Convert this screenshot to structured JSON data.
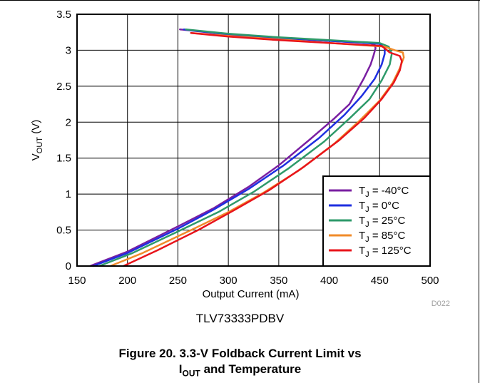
{
  "chart_data": {
    "type": "line",
    "subtitle": "TLV73333PDBV",
    "caption_line1": "Figure 20. 3.3-V Foldback Current Limit vs",
    "caption_line2_main": "I",
    "caption_line2_sub": "OUT",
    "caption_line2_rest": " and Temperature",
    "xlabel": "Output Current (mA)",
    "ylabel_main": "V",
    "ylabel_sub": "OUT",
    "ylabel_rest": " (V)",
    "xlim": [
      150,
      500
    ],
    "ylim": [
      0,
      3.5
    ],
    "xticks": [
      "150",
      "200",
      "250",
      "300",
      "350",
      "400",
      "450",
      "500"
    ],
    "yticks": [
      "0",
      "0.5",
      "1",
      "1.5",
      "2",
      "2.5",
      "3",
      "3.5"
    ],
    "grid": true,
    "legend_position": "bottom-right",
    "figure_code": "D022",
    "series": [
      {
        "name": "Tⱼ = -40°C",
        "legend_main": "T",
        "legend_sub": "J",
        "legend_rest": " = -40°C",
        "color": "#7a1fa2",
        "x": [
          163,
          200,
          250,
          285,
          320,
          350,
          380,
          405,
          420,
          428,
          434,
          441,
          444,
          446,
          445,
          440,
          400,
          350,
          300,
          252
        ],
        "y": [
          0,
          0.2,
          0.55,
          0.8,
          1.1,
          1.4,
          1.75,
          2.05,
          2.25,
          2.45,
          2.6,
          2.8,
          2.93,
          3.03,
          3.08,
          3.1,
          3.13,
          3.17,
          3.22,
          3.29
        ]
      },
      {
        "name": "Tⱼ = 0°C",
        "legend_main": "T",
        "legend_sub": "J",
        "legend_rest": " = 0°C",
        "color": "#1e2fe0",
        "x": [
          166,
          200,
          250,
          285,
          320,
          355,
          390,
          415,
          432,
          445,
          452,
          455,
          455,
          450,
          400,
          350,
          300,
          256
        ],
        "y": [
          0,
          0.18,
          0.52,
          0.78,
          1.07,
          1.4,
          1.78,
          2.1,
          2.36,
          2.6,
          2.8,
          2.95,
          3.03,
          3.09,
          3.13,
          3.17,
          3.22,
          3.29
        ]
      },
      {
        "name": "Tⱼ = 25°C",
        "legend_main": "T",
        "legend_sub": "J",
        "legend_rest": " = 25°C",
        "color": "#2e9a6a",
        "x": [
          172,
          205,
          250,
          290,
          325,
          360,
          395,
          420,
          440,
          452,
          460,
          462,
          459,
          450,
          400,
          350,
          300,
          258
        ],
        "y": [
          0,
          0.18,
          0.48,
          0.75,
          1.03,
          1.36,
          1.73,
          2.05,
          2.32,
          2.58,
          2.8,
          2.95,
          3.05,
          3.1,
          3.14,
          3.18,
          3.23,
          3.29
        ]
      },
      {
        "name": "Tⱼ = 85°C",
        "legend_main": "T",
        "legend_sub": "J",
        "legend_rest": " = 85°C",
        "color": "#f08b2a",
        "x": [
          183,
          215,
          260,
          300,
          335,
          370,
          405,
          430,
          450,
          463,
          470,
          474,
          473,
          465,
          455,
          400,
          350,
          300,
          263
        ],
        "y": [
          0,
          0.18,
          0.48,
          0.75,
          1.02,
          1.33,
          1.7,
          2.02,
          2.3,
          2.55,
          2.75,
          2.9,
          2.97,
          3.0,
          3.05,
          3.1,
          3.15,
          3.2,
          3.24
        ]
      },
      {
        "name": "Tⱼ = 125°C",
        "legend_main": "T",
        "legend_sub": "J",
        "legend_rest": " = 125°C",
        "color": "#e8141b",
        "x": [
          196,
          230,
          270,
          305,
          340,
          375,
          410,
          435,
          452,
          464,
          470,
          472,
          470,
          460,
          452,
          400,
          350,
          300,
          263
        ],
        "y": [
          0,
          0.22,
          0.5,
          0.77,
          1.05,
          1.38,
          1.75,
          2.06,
          2.32,
          2.55,
          2.72,
          2.85,
          2.92,
          2.97,
          3.06,
          3.1,
          3.14,
          3.19,
          3.24
        ]
      }
    ]
  }
}
